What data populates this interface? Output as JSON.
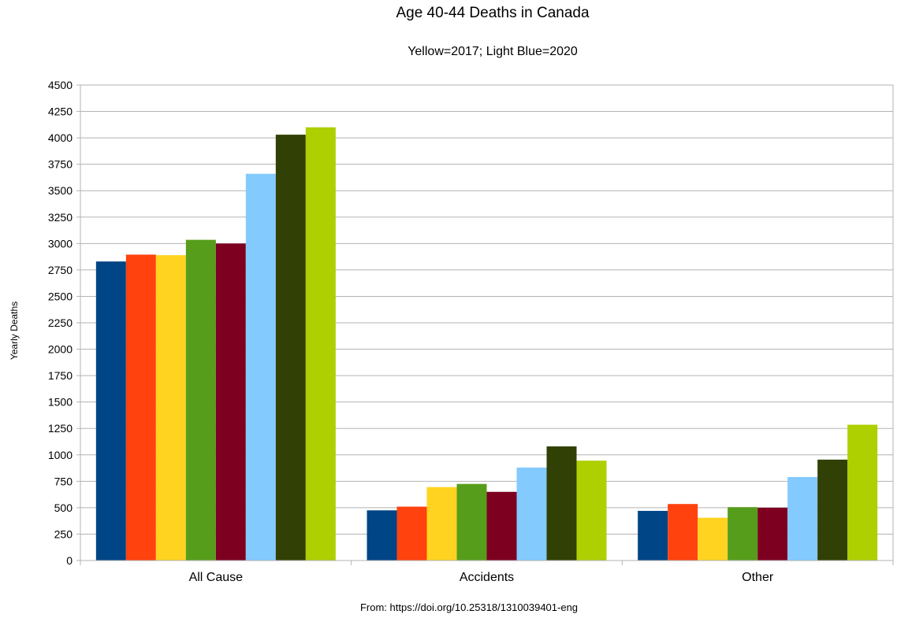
{
  "chart_data": {
    "type": "bar",
    "title": "Age 40-44 Deaths in Canada",
    "subtitle": "Yellow=2017; Light Blue=2020",
    "ylabel": "Yearly Deaths",
    "source": "From: https://doi.org/10.25318/1310039401-eng",
    "categories": [
      "All Cause",
      "Accidents",
      "Other"
    ],
    "ylim": [
      0,
      4500
    ],
    "yticks": [
      0,
      250,
      500,
      750,
      1000,
      1250,
      1500,
      1750,
      2000,
      2250,
      2500,
      2750,
      3000,
      3250,
      3500,
      3750,
      4000,
      4250,
      4500
    ],
    "grid": true,
    "series": [
      {
        "color": "#004586",
        "values": [
          2830,
          475,
          470
        ]
      },
      {
        "color": "#ff420e",
        "values": [
          2895,
          510,
          535
        ]
      },
      {
        "color": "#ffd320",
        "values": [
          2890,
          695,
          405
        ]
      },
      {
        "color": "#579d1c",
        "values": [
          3035,
          725,
          505
        ]
      },
      {
        "color": "#7e0021",
        "values": [
          3000,
          650,
          500
        ]
      },
      {
        "color": "#83caff",
        "values": [
          3660,
          880,
          790
        ]
      },
      {
        "color": "#314004",
        "values": [
          4030,
          1080,
          955
        ]
      },
      {
        "color": "#aecf00",
        "values": [
          4100,
          945,
          1285
        ]
      }
    ]
  }
}
